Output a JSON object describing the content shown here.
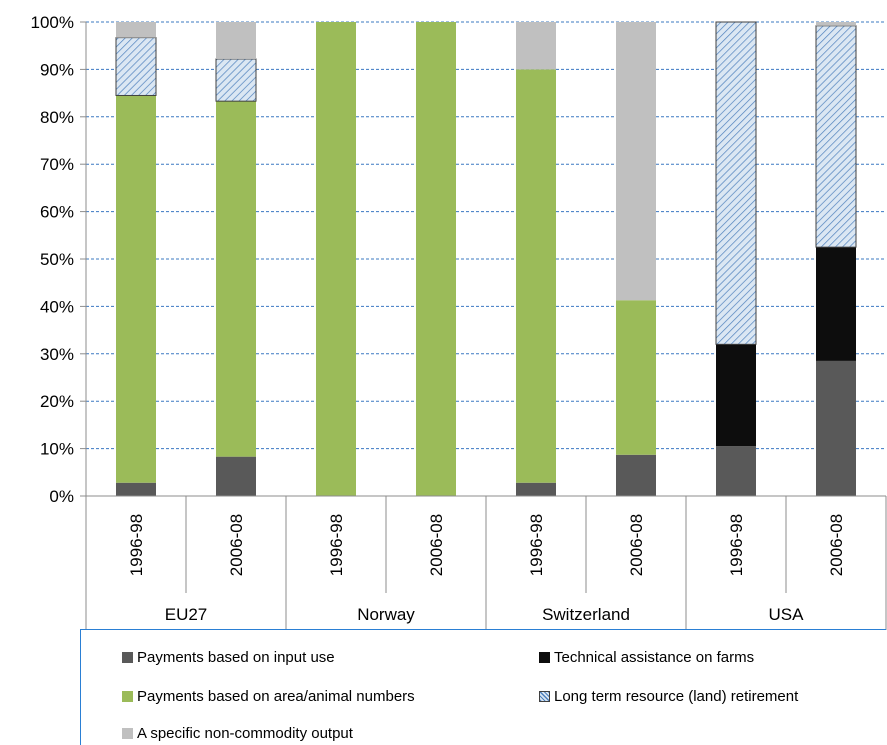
{
  "chart_data": {
    "type": "bar",
    "stacked": true,
    "y_axis": {
      "ylim": [
        0,
        100
      ],
      "ticks": [
        "0%",
        "10%",
        "20%",
        "30%",
        "40%",
        "50%",
        "60%",
        "70%",
        "80%",
        "90%",
        "100%"
      ]
    },
    "grid": true,
    "groups": [
      "EU27",
      "Norway",
      "Switzerland",
      "USA"
    ],
    "categories": [
      "1996-98",
      "2006-08",
      "1996-98",
      "2006-08",
      "1996-98",
      "2006-08",
      "1996-98",
      "2006-08"
    ],
    "series": [
      {
        "name": "Payments based on input use",
        "color": "#595959",
        "values": [
          2.8,
          8.3,
          0,
          0,
          2.8,
          8.7,
          10.5,
          28.5
        ]
      },
      {
        "name": "Technical assistance on farms",
        "color": "#0d0d0d",
        "values": [
          0,
          0,
          0,
          0,
          0,
          0,
          21.5,
          24.0
        ]
      },
      {
        "name": "Payments based on area/animal numbers",
        "color": "#9bbb59",
        "values": [
          81.7,
          75.0,
          100,
          100,
          87.2,
          32.6,
          0,
          0
        ]
      },
      {
        "name": "Long term resource (land) retirement",
        "color": "#b8cce4",
        "pattern": "hatch",
        "values": [
          12.2,
          8.9,
          0,
          0,
          0,
          0,
          68.0,
          46.7
        ]
      },
      {
        "name": "A specific non-commodity output",
        "color": "#c0c0c0",
        "values": [
          3.3,
          7.8,
          0,
          0,
          10.0,
          58.7,
          0,
          0.8
        ]
      }
    ],
    "legend_position": "bottom"
  }
}
